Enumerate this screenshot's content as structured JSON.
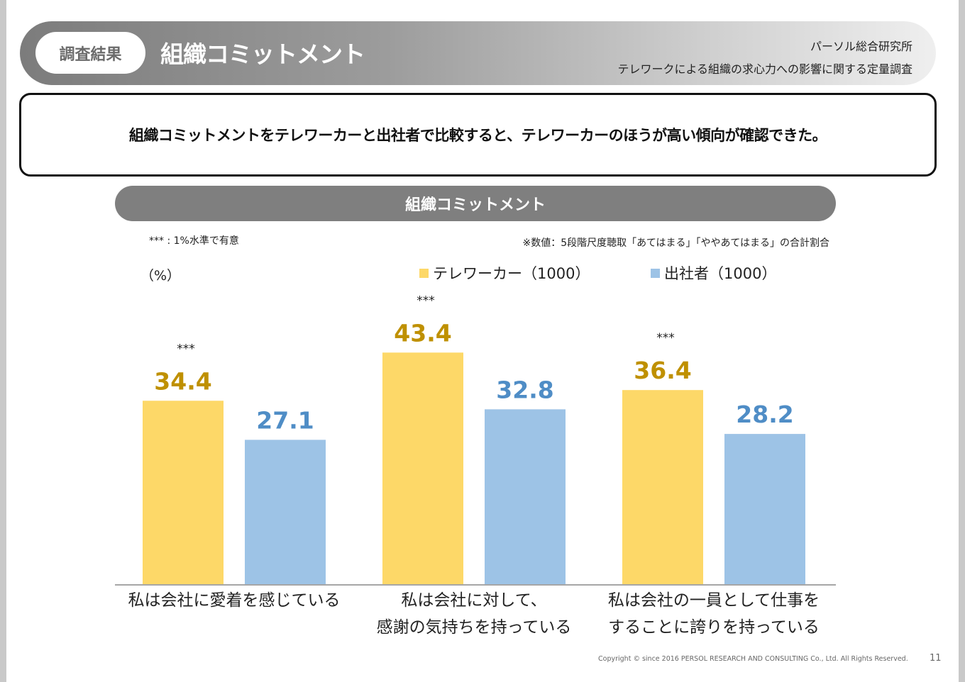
{
  "header": {
    "tag": "調査結果",
    "title": "組織コミットメント",
    "organization": "パーソル総合研究所",
    "survey_title": "テレワークによる組織の求心力への影響に関する定量調査"
  },
  "summary": "組織コミットメントをテレワーカーと出社者で比較すると、テレワーカーのほうが高い傾向が確認できた。",
  "chart_header": "組織コミットメント",
  "notes": {
    "significance": "*** :  1%水準で有意",
    "value_description": "※数値：5段階尺度聴取「あてはまる」「ややあてはまる」の合計割合",
    "unit": "（%）"
  },
  "colors": {
    "telework": "#fdd868",
    "office": "#9dc3e6",
    "telework_label": "#bf9000",
    "office_label": "#4f8dc6",
    "axis": "#a6a6a6"
  },
  "chart_data": {
    "type": "bar",
    "title": "組織コミットメント",
    "ylabel": "（%）",
    "ylim": [
      0,
      60
    ],
    "categories": [
      [
        "私は会社に愛着を感じている"
      ],
      [
        "私は会社に対して、",
        "感謝の気持ちを持っている"
      ],
      [
        "私は会社の一員として仕事を",
        "することに誇りを持っている"
      ]
    ],
    "series": [
      {
        "name": "テレワーカー（1000）",
        "values": [
          34.4,
          43.4,
          36.4
        ]
      },
      {
        "name": "出社者（1000）",
        "values": [
          27.1,
          32.8,
          28.2
        ]
      }
    ],
    "significance_marks": [
      "***",
      "***",
      "***"
    ]
  },
  "footer": {
    "copyright": "Copyright © since 2016  PERSOL  RESEARCH AND CONSULTING Co., Ltd. All Rights Reserved.",
    "page": "11"
  }
}
